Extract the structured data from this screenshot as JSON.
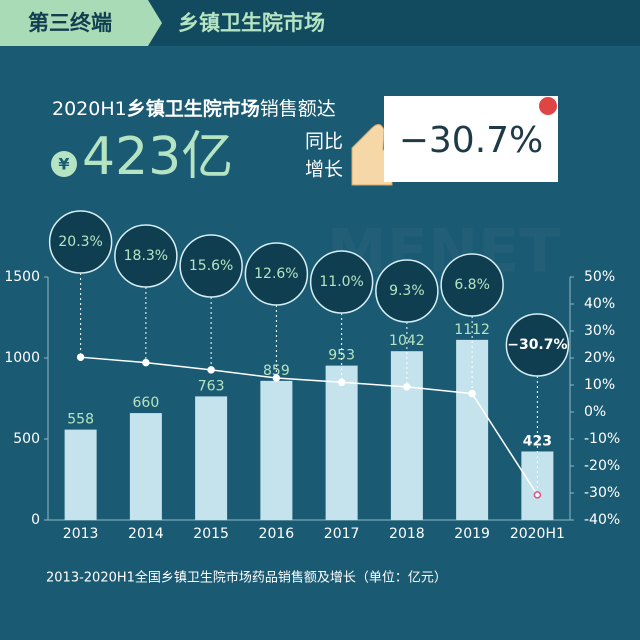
{
  "header": {
    "tag": "第三终端",
    "title": "乡镇卫生院市场"
  },
  "headline": {
    "period": "2020H1",
    "market": "乡镇卫生院市场",
    "phrase": "销售额达",
    "currency": "¥",
    "amount": "423亿",
    "yoy_line1": "同比",
    "yoy_line2": "增长",
    "yoy": "−30.7%"
  },
  "watermark": "MENET",
  "chart_data": {
    "type": "bar",
    "categories": [
      "2013",
      "2014",
      "2015",
      "2016",
      "2017",
      "2018",
      "2019",
      "2020H1"
    ],
    "series": [
      {
        "type": "bar",
        "color": "#c4e3ed",
        "values": [
          558,
          660,
          763,
          859,
          953,
          1042,
          1112,
          423
        ]
      },
      {
        "type": "line",
        "axis": "y2",
        "color": "#ffffff",
        "values": [
          20.3,
          18.3,
          15.6,
          12.6,
          11.0,
          9.3,
          6.8,
          -30.7
        ],
        "value_labels": [
          "20.3%",
          "18.3%",
          "15.6%",
          "12.6%",
          "11.0%",
          "9.3%",
          "6.8%",
          "−30.7%"
        ]
      }
    ],
    "ylim": [
      0,
      1500
    ],
    "yticks": [
      0,
      500,
      1000,
      1500
    ],
    "y2lim": [
      -40,
      50
    ],
    "y2ticks": [
      {
        "value": -40,
        "label": "-40%"
      },
      {
        "value": -30,
        "label": "-30%"
      },
      {
        "value": -20,
        "label": "-20%"
      },
      {
        "value": -10,
        "label": "-10%"
      },
      {
        "value": 0,
        "label": "0%"
      },
      {
        "value": 10,
        "label": "10%"
      },
      {
        "value": 20,
        "label": "20%"
      },
      {
        "value": 30,
        "label": "30%"
      },
      {
        "value": 40,
        "label": "40%"
      },
      {
        "value": 50,
        "label": "50%"
      }
    ],
    "caption": "2013-2020H1全国乡镇卫生院市场药品销售额及增长（单位：亿元）"
  }
}
